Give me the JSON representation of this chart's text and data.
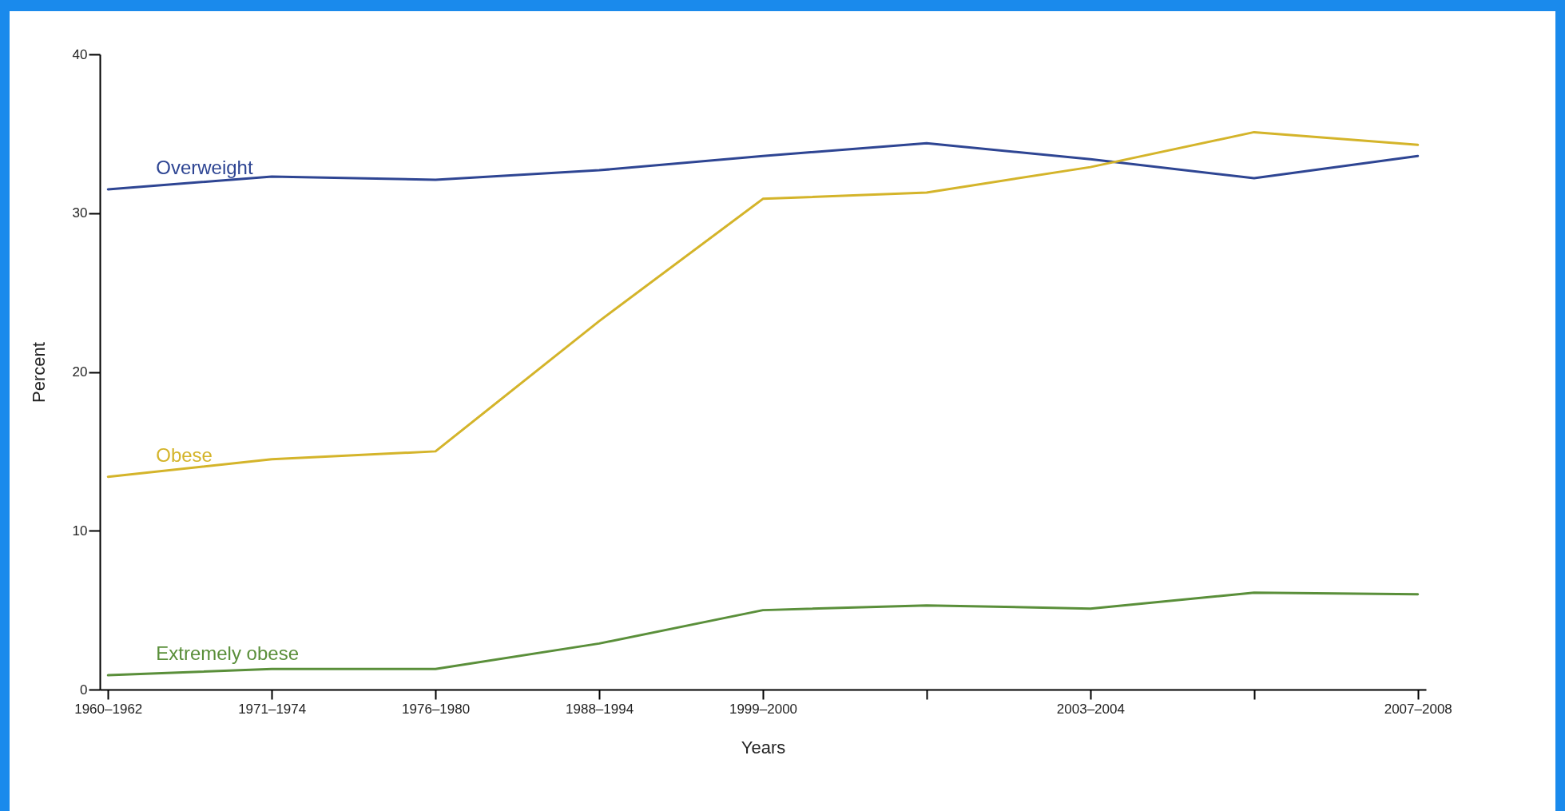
{
  "chart_data": {
    "type": "line",
    "xlabel": "Years",
    "ylabel": "Percent",
    "categories": [
      "1960–1962",
      "1971–1974",
      "1976–1980",
      "1988–1994",
      "1999–2000",
      null,
      "2003–2004",
      null,
      "2007–2008"
    ],
    "series": [
      {
        "name": "Overweight",
        "color": "#2e4593",
        "values": [
          31.5,
          32.3,
          32.1,
          32.7,
          33.6,
          34.4,
          33.4,
          32.2,
          33.6
        ]
      },
      {
        "name": "Obese",
        "color": "#d4b42a",
        "values": [
          13.4,
          14.5,
          15.0,
          23.2,
          30.9,
          31.3,
          32.9,
          35.1,
          34.3
        ]
      },
      {
        "name": "Extremely obese",
        "color": "#5a8f3a",
        "values": [
          0.9,
          1.3,
          1.3,
          2.9,
          5.0,
          5.3,
          5.1,
          6.1,
          6.0
        ]
      }
    ],
    "ylim": [
      0,
      40
    ],
    "yticks": [
      0,
      10,
      20,
      30,
      40
    ],
    "grid": false,
    "legend": false,
    "marker": "none",
    "line_style": "solid"
  }
}
